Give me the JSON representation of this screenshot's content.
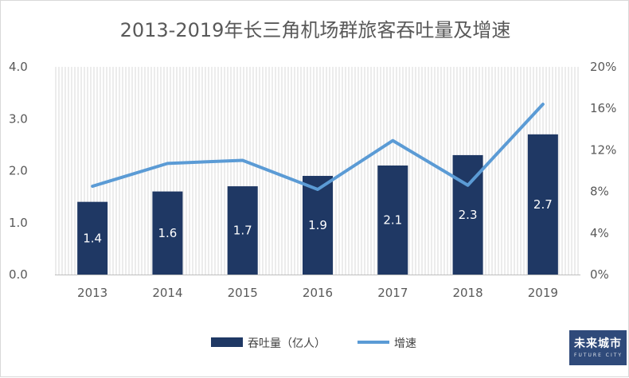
{
  "chart_data": {
    "type": "bar+line",
    "title": "2013-2019年长三角机场群旅客吞吐量及增速",
    "categories": [
      "2013",
      "2014",
      "2015",
      "2016",
      "2017",
      "2018",
      "2019"
    ],
    "series": [
      {
        "name": "吞吐量（亿人）",
        "type": "bar",
        "axis": "left",
        "values": [
          1.4,
          1.6,
          1.7,
          1.9,
          2.1,
          2.3,
          2.7
        ],
        "color": "#1f3864"
      },
      {
        "name": "增速",
        "type": "line",
        "axis": "right",
        "values": [
          8.5,
          10.7,
          11.0,
          8.2,
          12.9,
          8.6,
          16.4
        ],
        "color": "#5b9bd5"
      }
    ],
    "y_left": {
      "ylim": [
        0,
        4
      ],
      "ticks": [
        "0.0",
        "1.0",
        "2.0",
        "3.0",
        "4.0"
      ]
    },
    "y_right": {
      "ylim": [
        0,
        20
      ],
      "ticks": [
        "0%",
        "4%",
        "8%",
        "12%",
        "16%",
        "20%"
      ]
    },
    "legend_position": "bottom",
    "grid": false
  },
  "logo": {
    "main": "未来城市",
    "sub": "FUTURE CITY",
    "color": "#2f4a7a"
  }
}
